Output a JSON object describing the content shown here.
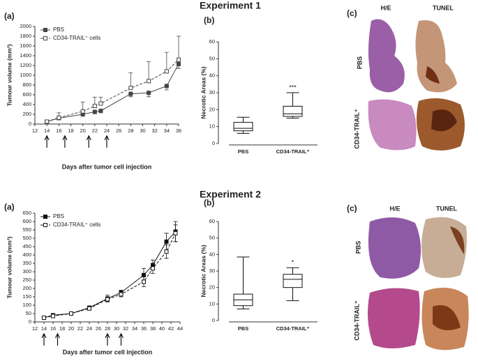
{
  "experiments": [
    {
      "title": "Experiment 1",
      "histology": {
        "panel_label": "(c)",
        "columns": [
          "H/E",
          "TUNEL"
        ],
        "rows": [
          "PBS",
          "CD34-TRAIL⁺"
        ]
      }
    },
    {
      "title": "Experiment 2",
      "histology": {
        "panel_label": "(c)",
        "columns": [
          "H/E",
          "TUNEL"
        ],
        "rows": [
          "PBS",
          "CD34-TRAIL⁺"
        ]
      }
    }
  ],
  "chart_data": [
    {
      "type": "line",
      "panel_label": "(a)",
      "x_label": "Days after tumor cell injection",
      "y_label": "Tumour volume (mm³)",
      "x": [
        14,
        16,
        20,
        22,
        23,
        28,
        31,
        34,
        36
      ],
      "series": [
        {
          "name": "PBS",
          "color": "#444444",
          "line_style": "solid",
          "marker": "filled",
          "error_direction": "down",
          "values": [
            50,
            120,
            200,
            250,
            270,
            620,
            640,
            780,
            1230
          ],
          "errors": [
            20,
            30,
            40,
            40,
            40,
            60,
            80,
            80,
            90
          ]
        },
        {
          "name": "CD34-TRAIL⁺ cells",
          "color": "#444444",
          "line_style": "dashed",
          "marker": "open",
          "error_direction": "up",
          "values": [
            50,
            130,
            260,
            370,
            420,
            740,
            880,
            1080,
            1320
          ],
          "errors": [
            30,
            100,
            190,
            180,
            130,
            310,
            400,
            390,
            480
          ]
        }
      ],
      "injection_days": [
        14,
        17,
        21,
        24
      ],
      "xlim": [
        12,
        36
      ],
      "xticks": [
        12,
        14,
        16,
        18,
        20,
        22,
        24,
        26,
        28,
        30,
        32,
        34,
        36
      ],
      "ylim": [
        0,
        2000
      ],
      "yticks": [
        0,
        200,
        400,
        600,
        800,
        1000,
        1200,
        1400,
        1600,
        1800,
        2000
      ]
    },
    {
      "type": "box",
      "panel_label": "(b)",
      "y_label": "Necrotic Areas (%)",
      "categories": [
        "PBS",
        "CD34-TRAIL⁺"
      ],
      "min": [
        6,
        15
      ],
      "q1": [
        7.5,
        16
      ],
      "median": [
        9,
        17.5
      ],
      "q3": [
        12.5,
        22
      ],
      "max": [
        15.5,
        30
      ],
      "significance": [
        null,
        "***"
      ],
      "ylim": [
        0,
        60
      ],
      "yticks": [
        0,
        10,
        20,
        30,
        40,
        50,
        60
      ]
    },
    {
      "type": "line",
      "panel_label": "(a)",
      "x_label": "Days after tumor cell injection",
      "y_label": "Tumour volume (mm³)",
      "x": [
        14,
        16,
        20,
        24,
        28,
        31,
        36,
        38,
        41,
        43
      ],
      "series": [
        {
          "name": "PBS",
          "color": "#111111",
          "line_style": "solid",
          "marker": "filled",
          "error_direction": "both",
          "values": [
            25,
            40,
            50,
            85,
            140,
            175,
            280,
            340,
            480,
            540
          ],
          "errors": [
            5,
            8,
            8,
            10,
            20,
            15,
            40,
            30,
            50,
            60
          ]
        },
        {
          "name": "CD34-TRAIL⁺ cells",
          "color": "#111111",
          "line_style": "dashed",
          "marker": "open",
          "error_direction": "both",
          "values": [
            25,
            35,
            50,
            80,
            135,
            165,
            240,
            320,
            420,
            530
          ],
          "errors": [
            5,
            8,
            8,
            10,
            15,
            15,
            30,
            30,
            40,
            50
          ]
        }
      ],
      "injection_days": [
        14,
        17,
        28,
        31
      ],
      "xlim": [
        12,
        44
      ],
      "xticks": [
        12,
        14,
        16,
        18,
        20,
        22,
        24,
        26,
        28,
        30,
        32,
        34,
        36,
        38,
        40,
        42,
        44
      ],
      "ylim": [
        0,
        650
      ],
      "yticks": [
        0,
        50,
        100,
        150,
        200,
        250,
        300,
        350,
        400,
        450,
        500,
        550,
        600,
        650
      ]
    },
    {
      "type": "box",
      "panel_label": "(b)",
      "y_label": "Necrotic Areas (%)",
      "categories": [
        "PBS",
        "CD34-TRAIL⁺"
      ],
      "min": [
        7,
        12
      ],
      "q1": [
        9,
        20
      ],
      "median": [
        12.5,
        25
      ],
      "q3": [
        16,
        28
      ],
      "max": [
        38.5,
        32
      ],
      "significance": [
        null,
        "*"
      ],
      "ylim": [
        0,
        60
      ],
      "yticks": [
        0,
        10,
        20,
        30,
        40,
        50,
        60
      ]
    }
  ]
}
